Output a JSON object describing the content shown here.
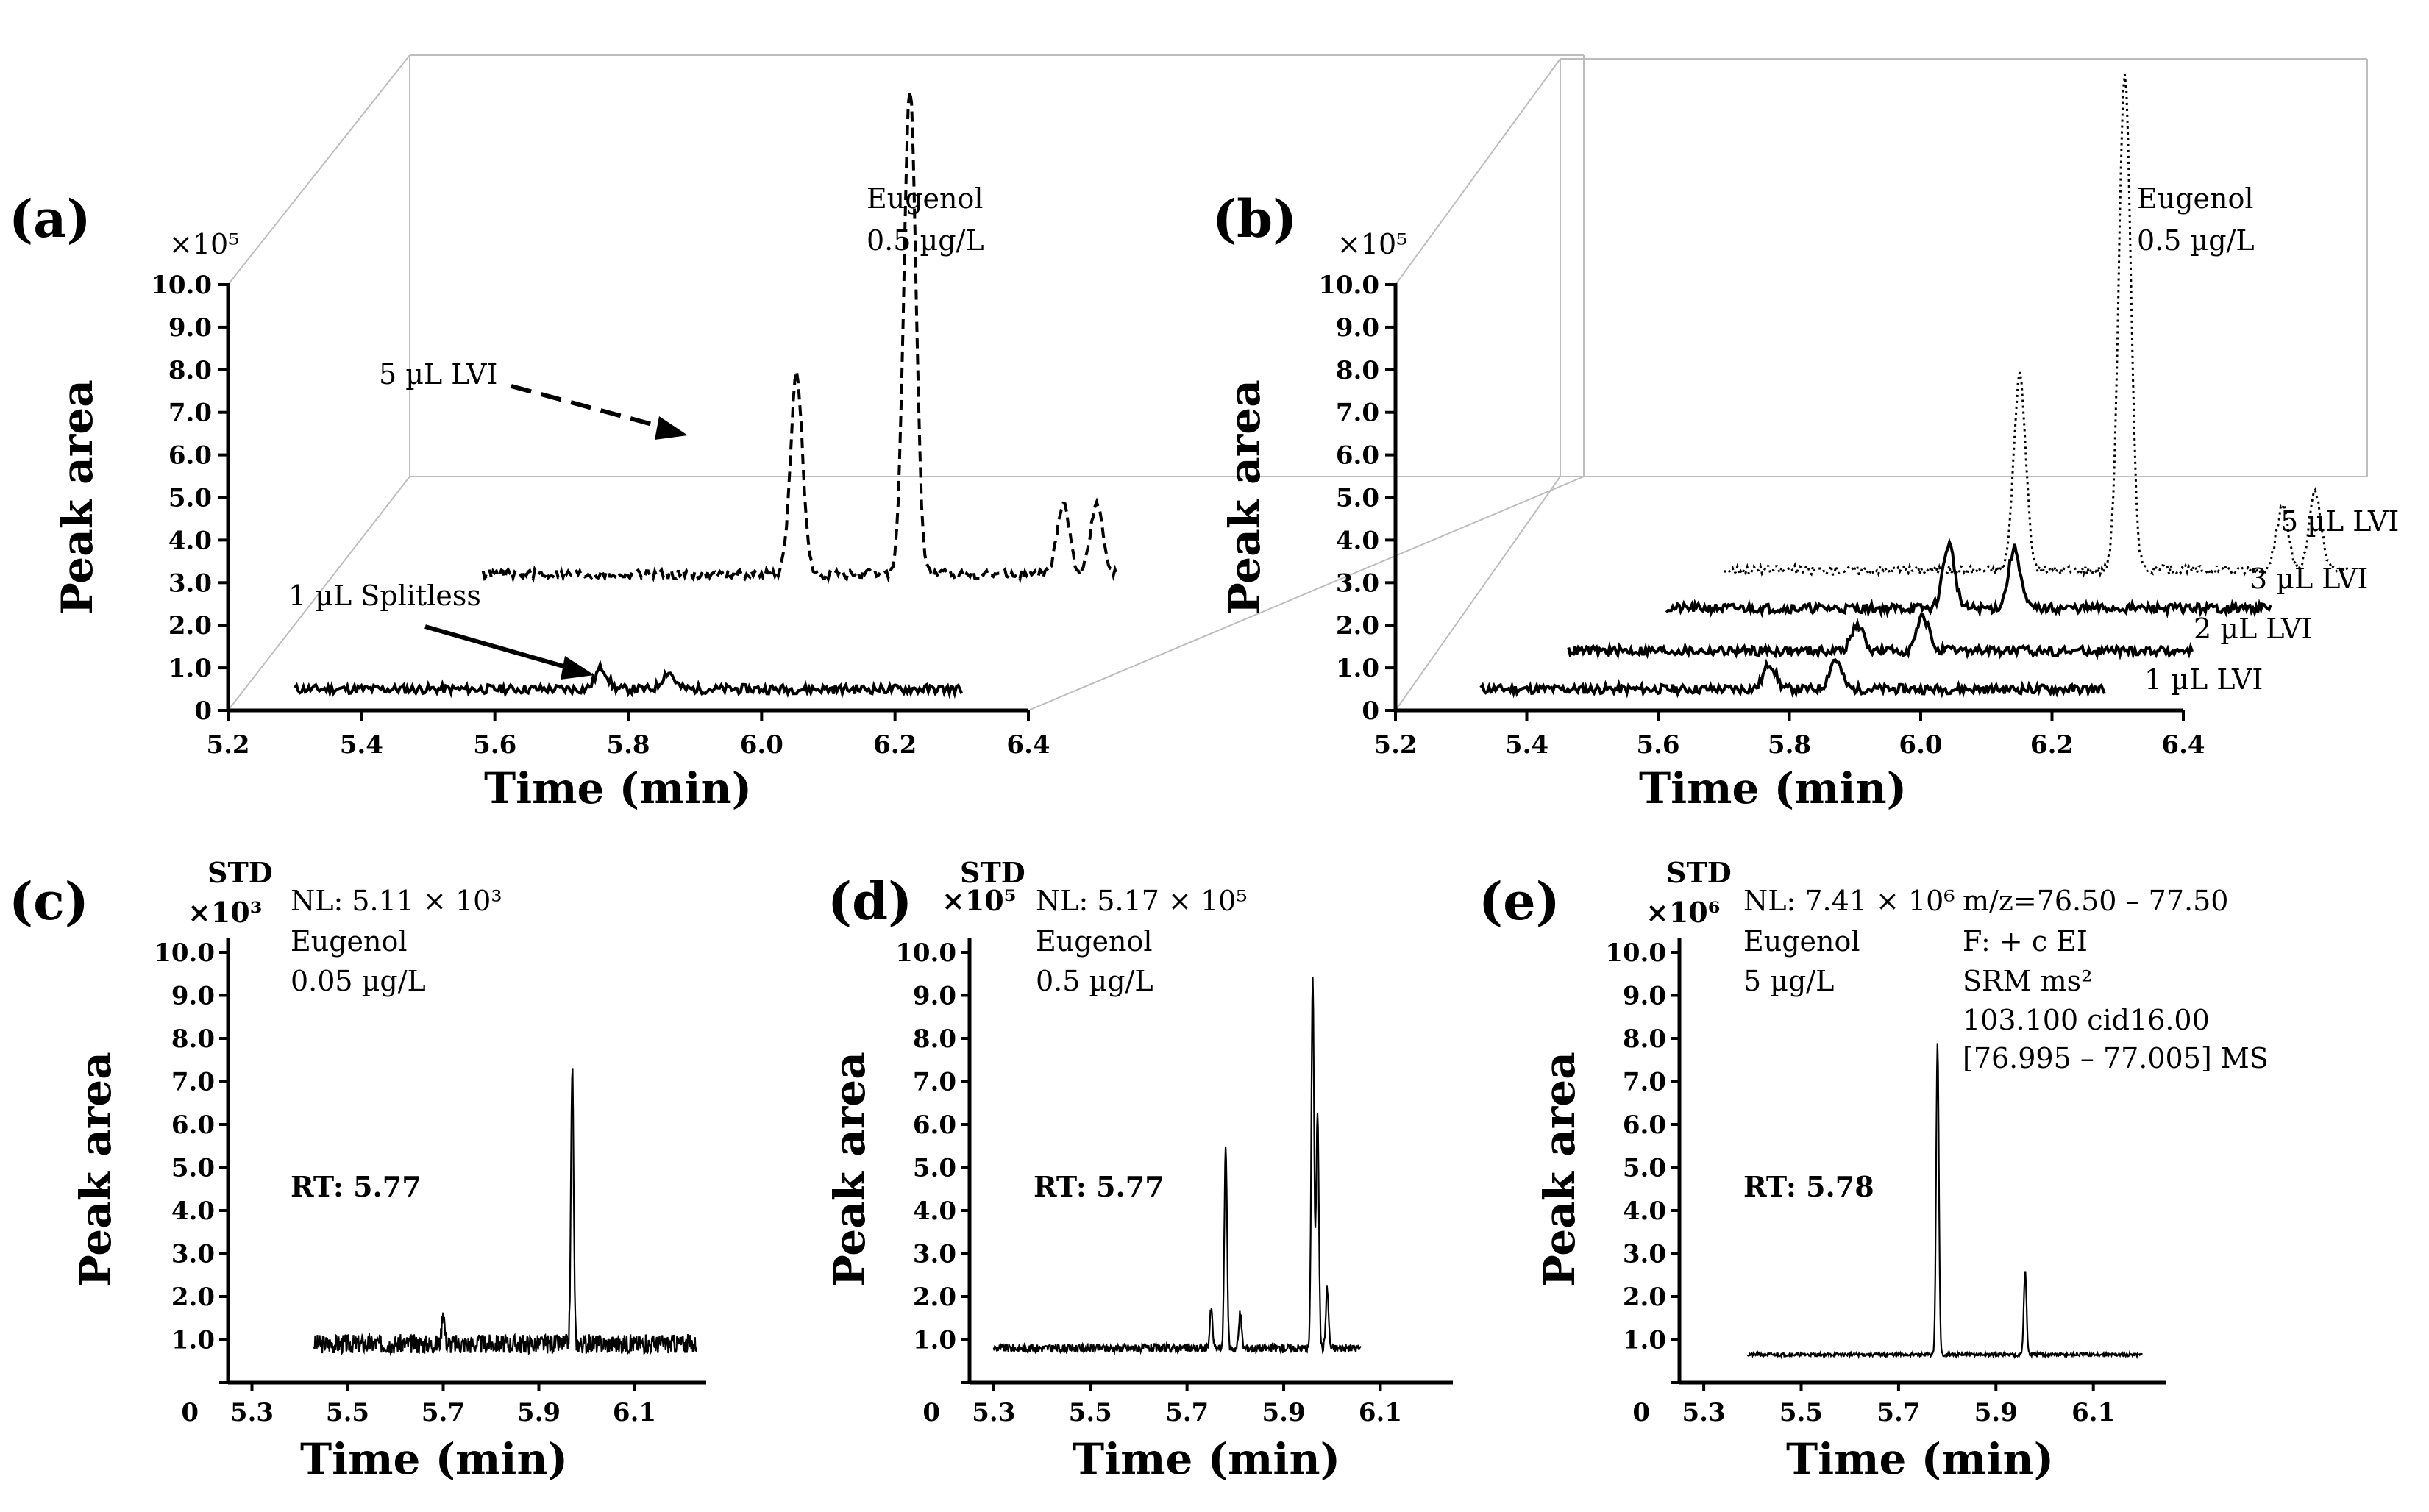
{
  "figure": {
    "panel_labels": [
      "(a)",
      "(b)",
      "(c)",
      "(d)",
      "(e)"
    ]
  },
  "chart_data": [
    {
      "panel": "(a)",
      "type": "line",
      "style": "3d-stacked",
      "xlabel": "Time (min)",
      "ylabel": "Peak area",
      "multiplier": "×10⁵",
      "xlim": [
        5.2,
        6.4
      ],
      "ylim": [
        0,
        10
      ],
      "x_ticks": [
        "5.2",
        "5.4",
        "5.6",
        "5.8",
        "6.0",
        "6.2",
        "6.4"
      ],
      "y_ticks": [
        "0",
        "1.0",
        "2.0",
        "3.0",
        "4.0",
        "5.0",
        "6.0",
        "7.0",
        "8.0",
        "9.0",
        "10.0"
      ],
      "annotation": {
        "line1": "Eugenol",
        "line2": "0.5 µg/L"
      },
      "series": [
        {
          "name": "1 µL Splitless",
          "dash": "solid",
          "baseline": 0.5,
          "peaks": [
            [
              5.76,
              1.0
            ],
            [
              5.86,
              0.9
            ]
          ],
          "x_range": [
            5.3,
            6.3
          ]
        },
        {
          "name": "5 µL LVI",
          "dash": "dashed",
          "baseline": 3.2,
          "peaks": [
            [
              5.92,
              7.9
            ],
            [
              6.09,
              14.6
            ],
            [
              6.32,
              4.9
            ],
            [
              6.37,
              4.9
            ]
          ],
          "x_range": [
            5.45,
            6.4
          ]
        }
      ]
    },
    {
      "panel": "(b)",
      "type": "line",
      "style": "3d-stacked",
      "xlabel": "Time (min)",
      "ylabel": "Peak area",
      "multiplier": "×10⁵",
      "xlim": [
        5.2,
        6.4
      ],
      "ylim": [
        0,
        10
      ],
      "x_ticks": [
        "5.2",
        "5.4",
        "5.6",
        "5.8",
        "6.0",
        "6.2",
        "6.4"
      ],
      "y_ticks": [
        "0",
        "1.0",
        "2.0",
        "3.0",
        "4.0",
        "5.0",
        "6.0",
        "7.0",
        "8.0",
        "9.0",
        "10.0"
      ],
      "annotation": {
        "line1": "Eugenol",
        "line2": "0.5 µg/L"
      },
      "series": [
        {
          "name": "1 µL LVI",
          "dash": "solid",
          "baseline": 0.5,
          "peaks": [
            [
              5.77,
              1.1
            ],
            [
              5.87,
              1.2
            ]
          ],
          "x_range": [
            5.33,
            6.28
          ]
        },
        {
          "name": "2 µL LVI",
          "dash": "solid",
          "baseline": 1.4,
          "peaks": [
            [
              5.87,
              2.0
            ],
            [
              5.97,
              2.2
            ]
          ],
          "x_range": [
            5.43,
            6.38
          ]
        },
        {
          "name": "3 µL LVI",
          "dash": "solid",
          "baseline": 2.4,
          "peaks": [
            [
              5.97,
              3.9
            ],
            [
              6.07,
              3.8
            ]
          ],
          "x_range": [
            5.54,
            6.46
          ]
        },
        {
          "name": "5 µL LVI",
          "dash": "dotted",
          "baseline": 3.3,
          "peaks": [
            [
              6.05,
              7.9
            ],
            [
              6.21,
              15.0
            ],
            [
              6.45,
              4.8
            ],
            [
              6.5,
              5.1
            ]
          ],
          "x_range": [
            5.6,
            6.55
          ]
        }
      ]
    },
    {
      "panel": "(c)",
      "type": "line",
      "xlabel": "Time (min)",
      "ylabel": "Peak area",
      "std_label": "STD",
      "multiplier": "×10³",
      "xlim": [
        5.25,
        6.25
      ],
      "ylim": [
        0,
        10
      ],
      "x_ticks": [
        "5.3",
        "5.5",
        "5.7",
        "5.9",
        "6.1"
      ],
      "y_ticks": [
        "0",
        "1.0",
        "2.0",
        "3.0",
        "4.0",
        "5.0",
        "6.0",
        "7.0",
        "8.0",
        "9.0",
        "10.0"
      ],
      "annotations": [
        "NL: 5.11 × 10³",
        "Eugenol",
        "0.05 µg/L"
      ],
      "rt_label": "RT: 5.77",
      "baseline": 0.9,
      "peaks": [
        [
          5.7,
          1.7
        ],
        [
          5.97,
          7.3
        ]
      ],
      "x_range": [
        5.43,
        6.23
      ]
    },
    {
      "panel": "(d)",
      "type": "line",
      "xlabel": "Time (min)",
      "ylabel": "Peak area",
      "std_label": "STD",
      "multiplier": "×10⁵",
      "xlim": [
        5.25,
        6.25
      ],
      "ylim": [
        0,
        10
      ],
      "x_ticks": [
        "5.3",
        "5.5",
        "5.7",
        "5.9",
        "6.1"
      ],
      "y_ticks": [
        "0",
        "1.0",
        "2.0",
        "3.0",
        "4.0",
        "5.0",
        "6.0",
        "7.0",
        "8.0",
        "9.0",
        "10.0"
      ],
      "annotations": [
        "NL: 5.17 × 10⁵",
        "Eugenol",
        "0.5 µg/L"
      ],
      "rt_label": "RT: 5.77",
      "baseline": 0.8,
      "peaks": [
        [
          5.75,
          1.7
        ],
        [
          5.78,
          5.5
        ],
        [
          5.81,
          1.6
        ],
        [
          5.96,
          9.4
        ],
        [
          5.97,
          6.3
        ],
        [
          5.99,
          2.2
        ]
      ],
      "x_range": [
        5.3,
        6.06
      ]
    },
    {
      "panel": "(e)",
      "type": "line",
      "xlabel": "Time (min)",
      "ylabel": "Peak area",
      "std_label": "STD",
      "multiplier": "×10⁶",
      "xlim": [
        5.25,
        6.25
      ],
      "ylim": [
        0,
        10
      ],
      "x_ticks": [
        "5.3",
        "5.5",
        "5.7",
        "5.9",
        "6.1"
      ],
      "y_ticks": [
        "0",
        "1.0",
        "2.0",
        "3.0",
        "4.0",
        "5.0",
        "6.0",
        "7.0",
        "8.0",
        "9.0",
        "10.0"
      ],
      "annotations": [
        "NL: 7.41 × 10⁶",
        "Eugenol",
        "5 µg/L"
      ],
      "scan_info": [
        "m/z=76.50 – 77.50",
        "F: + c EI",
        "SRM ms²",
        "103.100 cid16.00",
        "[76.995 – 77.005] MS"
      ],
      "rt_label": "RT: 5.78",
      "baseline": 0.65,
      "peaks": [
        [
          5.78,
          7.9
        ],
        [
          5.96,
          2.6
        ]
      ],
      "x_range": [
        5.39,
        6.2
      ]
    }
  ]
}
